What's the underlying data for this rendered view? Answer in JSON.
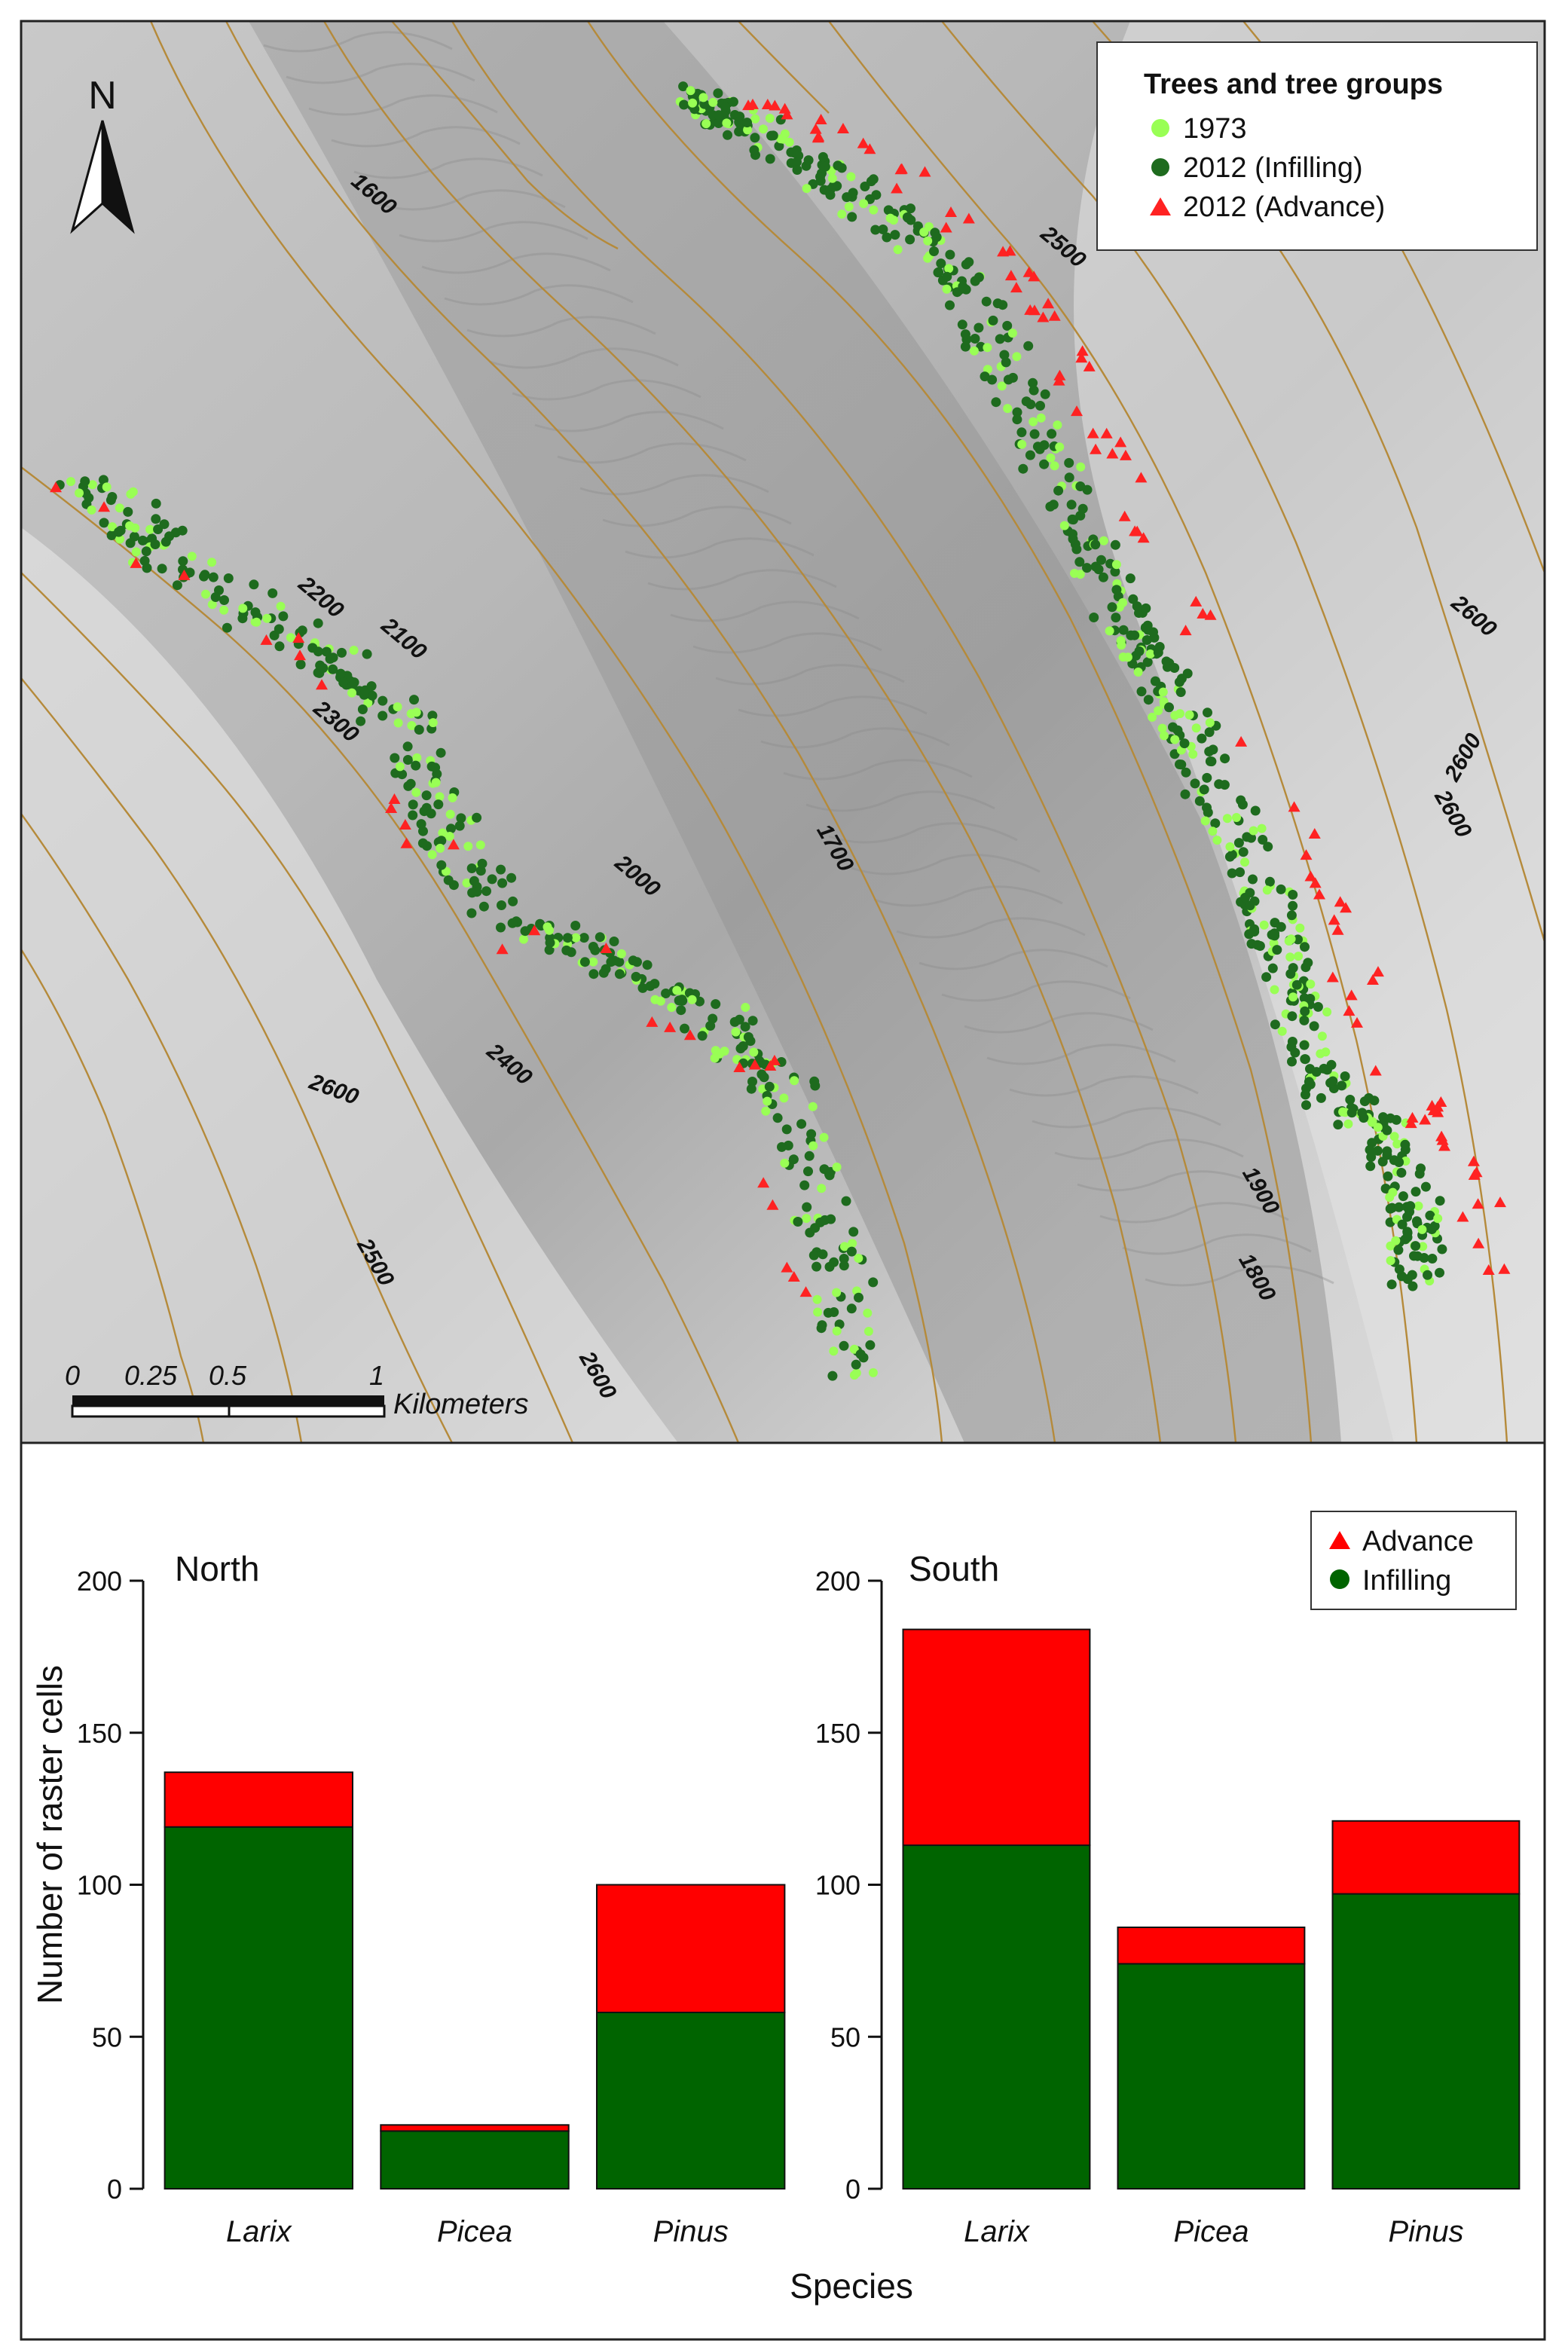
{
  "map": {
    "north_label": "N",
    "legend": {
      "title": "Trees and tree groups",
      "items": [
        {
          "label": "1973",
          "color": "#99ff55",
          "shape": "circle"
        },
        {
          "label": "2012 (Infilling)",
          "color": "#1e6b1e",
          "shape": "circle"
        },
        {
          "label": "2012 (Advance)",
          "color": "#ff2222",
          "shape": "triangle"
        }
      ]
    },
    "contour_labels": [
      "1600",
      "2500",
      "2200",
      "2100",
      "2300",
      "2000",
      "1700",
      "2600",
      "2600",
      "2600",
      "2400",
      "2600",
      "2500",
      "2600",
      "1900",
      "1800"
    ],
    "contour_color": "#b58a3a",
    "scale_bar": {
      "ticks": [
        "0",
        "0.25",
        "0.5",
        "1"
      ],
      "unit": "Kilometers"
    }
  },
  "chart_data": [
    {
      "type": "bar",
      "stacked": true,
      "title": "North",
      "categories": [
        "Larix",
        "Picea",
        "Pinus"
      ],
      "series": [
        {
          "name": "Infilling",
          "color": "#006400",
          "values": [
            119,
            19,
            58
          ]
        },
        {
          "name": "Advance",
          "color": "#ff0000",
          "values": [
            18,
            2,
            42
          ]
        }
      ],
      "ylabel": "Number of raster cells",
      "xlabel": "",
      "ylim": [
        0,
        200
      ],
      "yticks": [
        "0",
        "50",
        "100",
        "150",
        "200"
      ],
      "grid": false
    },
    {
      "type": "bar",
      "stacked": true,
      "title": "South",
      "categories": [
        "Larix",
        "Picea",
        "Pinus"
      ],
      "series": [
        {
          "name": "Infilling",
          "color": "#006400",
          "values": [
            113,
            74,
            97
          ]
        },
        {
          "name": "Advance",
          "color": "#ff0000",
          "values": [
            71,
            12,
            24
          ]
        }
      ],
      "ylabel": "",
      "xlabel": "",
      "ylim": [
        0,
        200
      ],
      "yticks": [
        "0",
        "50",
        "100",
        "150",
        "200"
      ],
      "grid": false
    }
  ],
  "bar_panel": {
    "shared_xlabel": "Species",
    "legend": [
      {
        "label": "Advance",
        "color": "#ff0000",
        "shape": "triangle"
      },
      {
        "label": "Infilling",
        "color": "#006400",
        "shape": "circle"
      }
    ]
  }
}
